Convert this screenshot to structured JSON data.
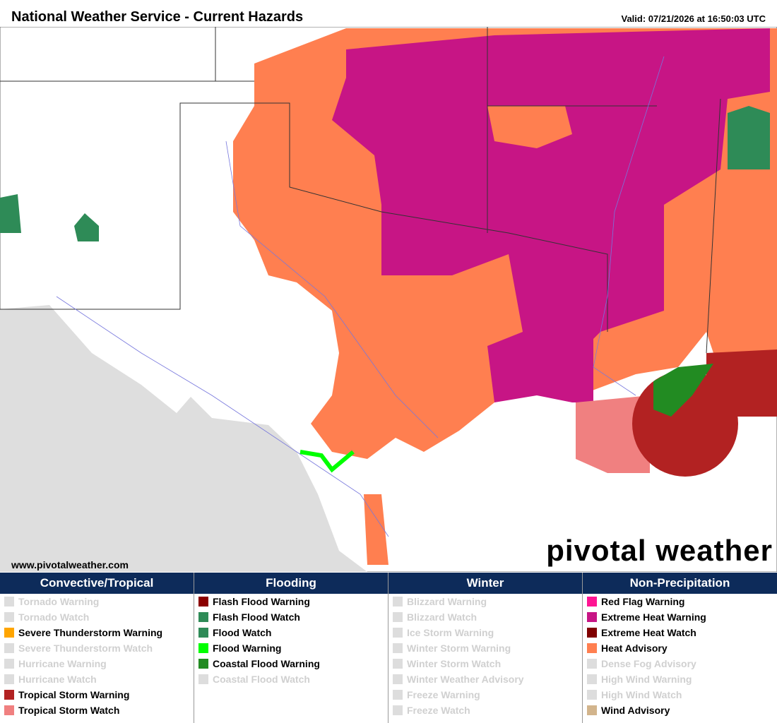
{
  "header": {
    "title": "National Weather Service - Current Hazards",
    "valid": "Valid: 07/21/2026 at 16:50:03 UTC"
  },
  "map": {
    "source": "www.pivotalweather.com",
    "logo": "pivotal weather"
  },
  "legend": {
    "columns": [
      {
        "title": "Convective/Tropical",
        "items": [
          {
            "label": "Tornado Warning",
            "color": "#dddddd",
            "active": false
          },
          {
            "label": "Tornado Watch",
            "color": "#dddddd",
            "active": false
          },
          {
            "label": "Severe Thunderstorm Warning",
            "color": "#ffa500",
            "active": true
          },
          {
            "label": "Severe Thunderstorm Watch",
            "color": "#dddddd",
            "active": false
          },
          {
            "label": "Hurricane Warning",
            "color": "#dddddd",
            "active": false
          },
          {
            "label": "Hurricane Watch",
            "color": "#dddddd",
            "active": false
          },
          {
            "label": "Tropical Storm Warning",
            "color": "#b22222",
            "active": true
          },
          {
            "label": "Tropical Storm Watch",
            "color": "#f08080",
            "active": true
          }
        ]
      },
      {
        "title": "Flooding",
        "items": [
          {
            "label": "Flash Flood Warning",
            "color": "#8b0000",
            "active": true
          },
          {
            "label": "Flash Flood Watch",
            "color": "#2e8b57",
            "active": true
          },
          {
            "label": "Flood Watch",
            "color": "#2e8b57",
            "active": true
          },
          {
            "label": "Flood Warning",
            "color": "#00ff00",
            "active": true
          },
          {
            "label": "Coastal Flood Warning",
            "color": "#228b22",
            "active": true
          },
          {
            "label": "Coastal Flood Watch",
            "color": "#dddddd",
            "active": false
          }
        ]
      },
      {
        "title": "Winter",
        "items": [
          {
            "label": "Blizzard Warning",
            "color": "#dddddd",
            "active": false
          },
          {
            "label": "Blizzard Watch",
            "color": "#dddddd",
            "active": false
          },
          {
            "label": "Ice Storm Warning",
            "color": "#dddddd",
            "active": false
          },
          {
            "label": "Winter Storm Warning",
            "color": "#dddddd",
            "active": false
          },
          {
            "label": "Winter Storm Watch",
            "color": "#dddddd",
            "active": false
          },
          {
            "label": "Winter Weather Advisory",
            "color": "#dddddd",
            "active": false
          },
          {
            "label": "Freeze Warning",
            "color": "#dddddd",
            "active": false
          },
          {
            "label": "Freeze Watch",
            "color": "#dddddd",
            "active": false
          }
        ]
      },
      {
        "title": "Non-Precipitation",
        "items": [
          {
            "label": "Red Flag Warning",
            "color": "#ff1493",
            "active": true
          },
          {
            "label": "Extreme Heat Warning",
            "color": "#c71585",
            "active": true
          },
          {
            "label": "Extreme Heat Watch",
            "color": "#800000",
            "active": true
          },
          {
            "label": "Heat Advisory",
            "color": "#ff7f50",
            "active": true
          },
          {
            "label": "Dense Fog Advisory",
            "color": "#dddddd",
            "active": false
          },
          {
            "label": "High Wind Warning",
            "color": "#dddddd",
            "active": false
          },
          {
            "label": "High Wind Watch",
            "color": "#dddddd",
            "active": false
          },
          {
            "label": "Wind Advisory",
            "color": "#d2b48c",
            "active": true
          }
        ]
      }
    ]
  }
}
